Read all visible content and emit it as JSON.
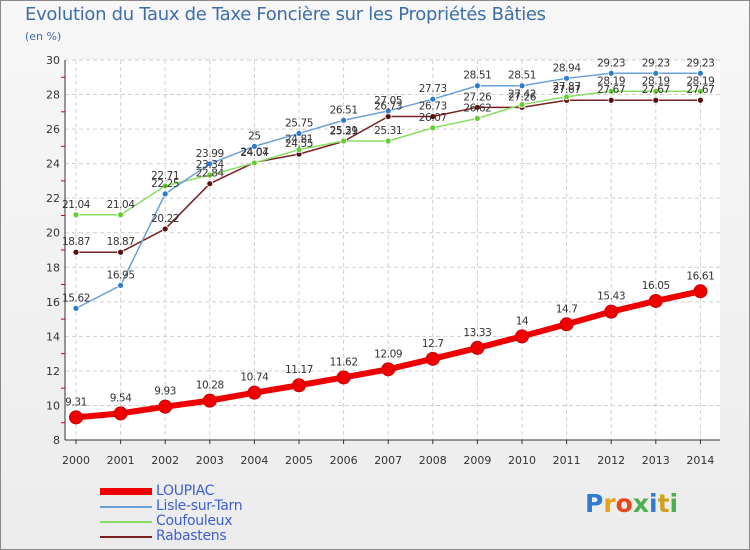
{
  "title": "Evolution du Taux de Taxe Foncière sur les Propriétés Bâties",
  "subtitle": "(en %)",
  "logo": {
    "text": "Proxiti",
    "colors": [
      "#2f7bd0",
      "#e8a21a",
      "#e8471a",
      "#4caf50",
      "#2f7bd0",
      "#d0a020",
      "#4caf50"
    ]
  },
  "chart_data": {
    "type": "line",
    "title": "Evolution du Taux de Taxe Foncière sur les Propriétés Bâties",
    "ylabel": "(en %)",
    "xlabel": "",
    "ylim": [
      8,
      30
    ],
    "yticks": [
      8,
      10,
      12,
      14,
      16,
      18,
      20,
      22,
      24,
      26,
      28,
      30
    ],
    "grid": true,
    "legend": "bottom-left",
    "categories": [
      "2000",
      "2001",
      "2002",
      "2003",
      "2004",
      "2005",
      "2006",
      "2007",
      "2008",
      "2009",
      "2010",
      "2011",
      "2012",
      "2013",
      "2014"
    ],
    "series": [
      {
        "name": "LOUPIAC",
        "color": "#ee0000",
        "values": [
          9.31,
          9.54,
          9.93,
          10.28,
          10.74,
          11.17,
          11.62,
          12.09,
          12.7,
          13.33,
          14,
          14.7,
          15.43,
          16.05,
          16.61
        ],
        "labels": [
          "9.31",
          "9.54",
          "9.93",
          "10.28",
          "10.74",
          "11.17",
          "11.62",
          "12.09",
          "12.7",
          "13.33",
          "14",
          "14.7",
          "15.43",
          "16.05",
          "16.61"
        ]
      },
      {
        "name": "Lisle-sur-Tarn",
        "color": "#6aa0d8",
        "marker": "#2f7bd0",
        "values": [
          15.62,
          16.95,
          22.25,
          23.99,
          25,
          25.75,
          26.51,
          27.05,
          27.73,
          28.51,
          28.51,
          28.94,
          29.23,
          29.23,
          29.23
        ],
        "labels": [
          "15.62",
          "16.95",
          "22.25",
          "23.99",
          "25",
          "25.75",
          "26.51",
          "27.05",
          "27.73",
          "28.51",
          "28.51",
          "28.94",
          "29.23",
          "29.23",
          "29.23"
        ]
      },
      {
        "name": "Coufouleux",
        "color": "#88dd66",
        "marker": "#66cc33",
        "values": [
          21.04,
          21.04,
          22.71,
          23.34,
          24.04,
          24.81,
          25.31,
          25.31,
          26.07,
          26.62,
          27.42,
          27.87,
          28.19,
          28.19,
          28.19
        ],
        "labels": [
          "21.04",
          "21.04",
          "22.71",
          "23.34",
          "24.04",
          "24.81",
          "25.31",
          "25.31",
          "26.07",
          "26.62",
          "27.42",
          "27.87",
          "28.19",
          "28.19",
          "28.19"
        ]
      },
      {
        "name": "Rabastens",
        "color": "#7a2020",
        "marker": "#5a1010",
        "values": [
          18.87,
          18.87,
          20.22,
          22.84,
          24.07,
          24.55,
          25.29,
          26.73,
          26.73,
          27.26,
          27.26,
          27.67,
          27.67,
          27.67,
          27.67
        ],
        "labels": [
          "18.87",
          "18.87",
          "20.22",
          "22.84",
          "24.07",
          "24.55",
          "25.29",
          "26.73",
          "26.73",
          "27.26",
          "27.26",
          "27.67",
          "27.67",
          "27.67",
          "27.67"
        ]
      }
    ]
  }
}
